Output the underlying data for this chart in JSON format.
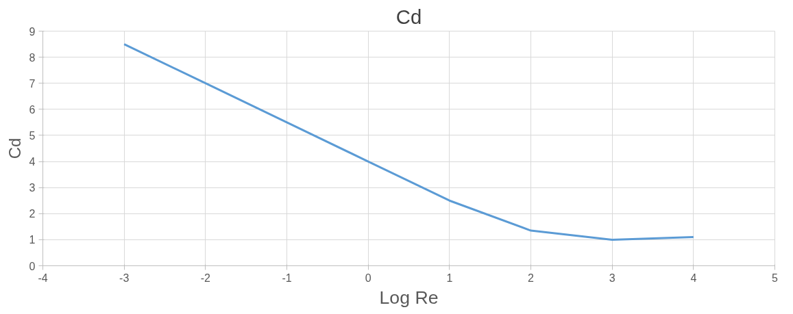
{
  "chart_data": {
    "type": "line",
    "title": "Cd",
    "xlabel": "Log Re",
    "ylabel": "Cd",
    "x": [
      -3,
      -2,
      -1,
      0,
      1,
      2,
      3,
      4
    ],
    "series": [
      {
        "color": "#5b9bd5",
        "values": [
          8.5,
          7.0,
          5.5,
          4.0,
          2.5,
          1.35,
          1.0,
          1.1
        ]
      }
    ],
    "xlim": [
      -4,
      5
    ],
    "xticks": [
      -4,
      -3,
      -2,
      -1,
      0,
      1,
      2,
      3,
      4,
      5
    ],
    "ylim": [
      0,
      9
    ],
    "yticks": [
      0,
      1,
      2,
      3,
      4,
      5,
      6,
      7,
      8,
      9
    ],
    "grid": true,
    "marker": "none",
    "line_style": "solid"
  }
}
